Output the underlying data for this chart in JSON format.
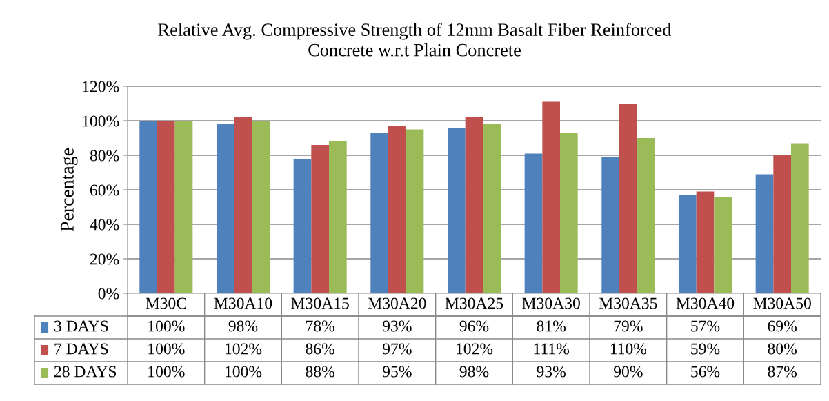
{
  "chart_data": {
    "type": "bar",
    "title": "Relative Avg. Compressive Strength of 12mm Basalt Fiber Reinforced\nConcrete w.r.t Plain Concrete",
    "ylabel": "Percentage",
    "categories": [
      "M30C",
      "M30A10",
      "M30A15",
      "M30A20",
      "M30A25",
      "M30A30",
      "M30A35",
      "M30A40",
      "M30A50"
    ],
    "series": [
      {
        "name": "3 DAYS",
        "color": "#4f81bd",
        "values": [
          100,
          98,
          78,
          93,
          96,
          81,
          79,
          57,
          69
        ],
        "value_labels": [
          "100%",
          "98%",
          "78%",
          "93%",
          "96%",
          "81%",
          "79%",
          "57%",
          "69%"
        ]
      },
      {
        "name": "7 DAYS",
        "color": "#c0504d",
        "values": [
          100,
          102,
          86,
          97,
          102,
          111,
          110,
          59,
          80
        ],
        "value_labels": [
          "100%",
          "102%",
          "86%",
          "97%",
          "102%",
          "111%",
          "110%",
          "59%",
          "80%"
        ]
      },
      {
        "name": "28 DAYS",
        "color": "#9bbb59",
        "values": [
          100,
          100,
          88,
          95,
          98,
          93,
          90,
          56,
          87
        ],
        "value_labels": [
          "100%",
          "100%",
          "88%",
          "95%",
          "98%",
          "93%",
          "90%",
          "56%",
          "87%"
        ]
      }
    ],
    "ylim": [
      0,
      120
    ],
    "yticks": [
      {
        "value": 0,
        "label": "0%"
      },
      {
        "value": 20,
        "label": "20%"
      },
      {
        "value": 40,
        "label": "40%"
      },
      {
        "value": 60,
        "label": "60%"
      },
      {
        "value": 80,
        "label": "80%"
      },
      {
        "value": 100,
        "label": "100%"
      },
      {
        "value": 120,
        "label": "120%"
      }
    ],
    "grid": "y",
    "legend": "bottom"
  }
}
